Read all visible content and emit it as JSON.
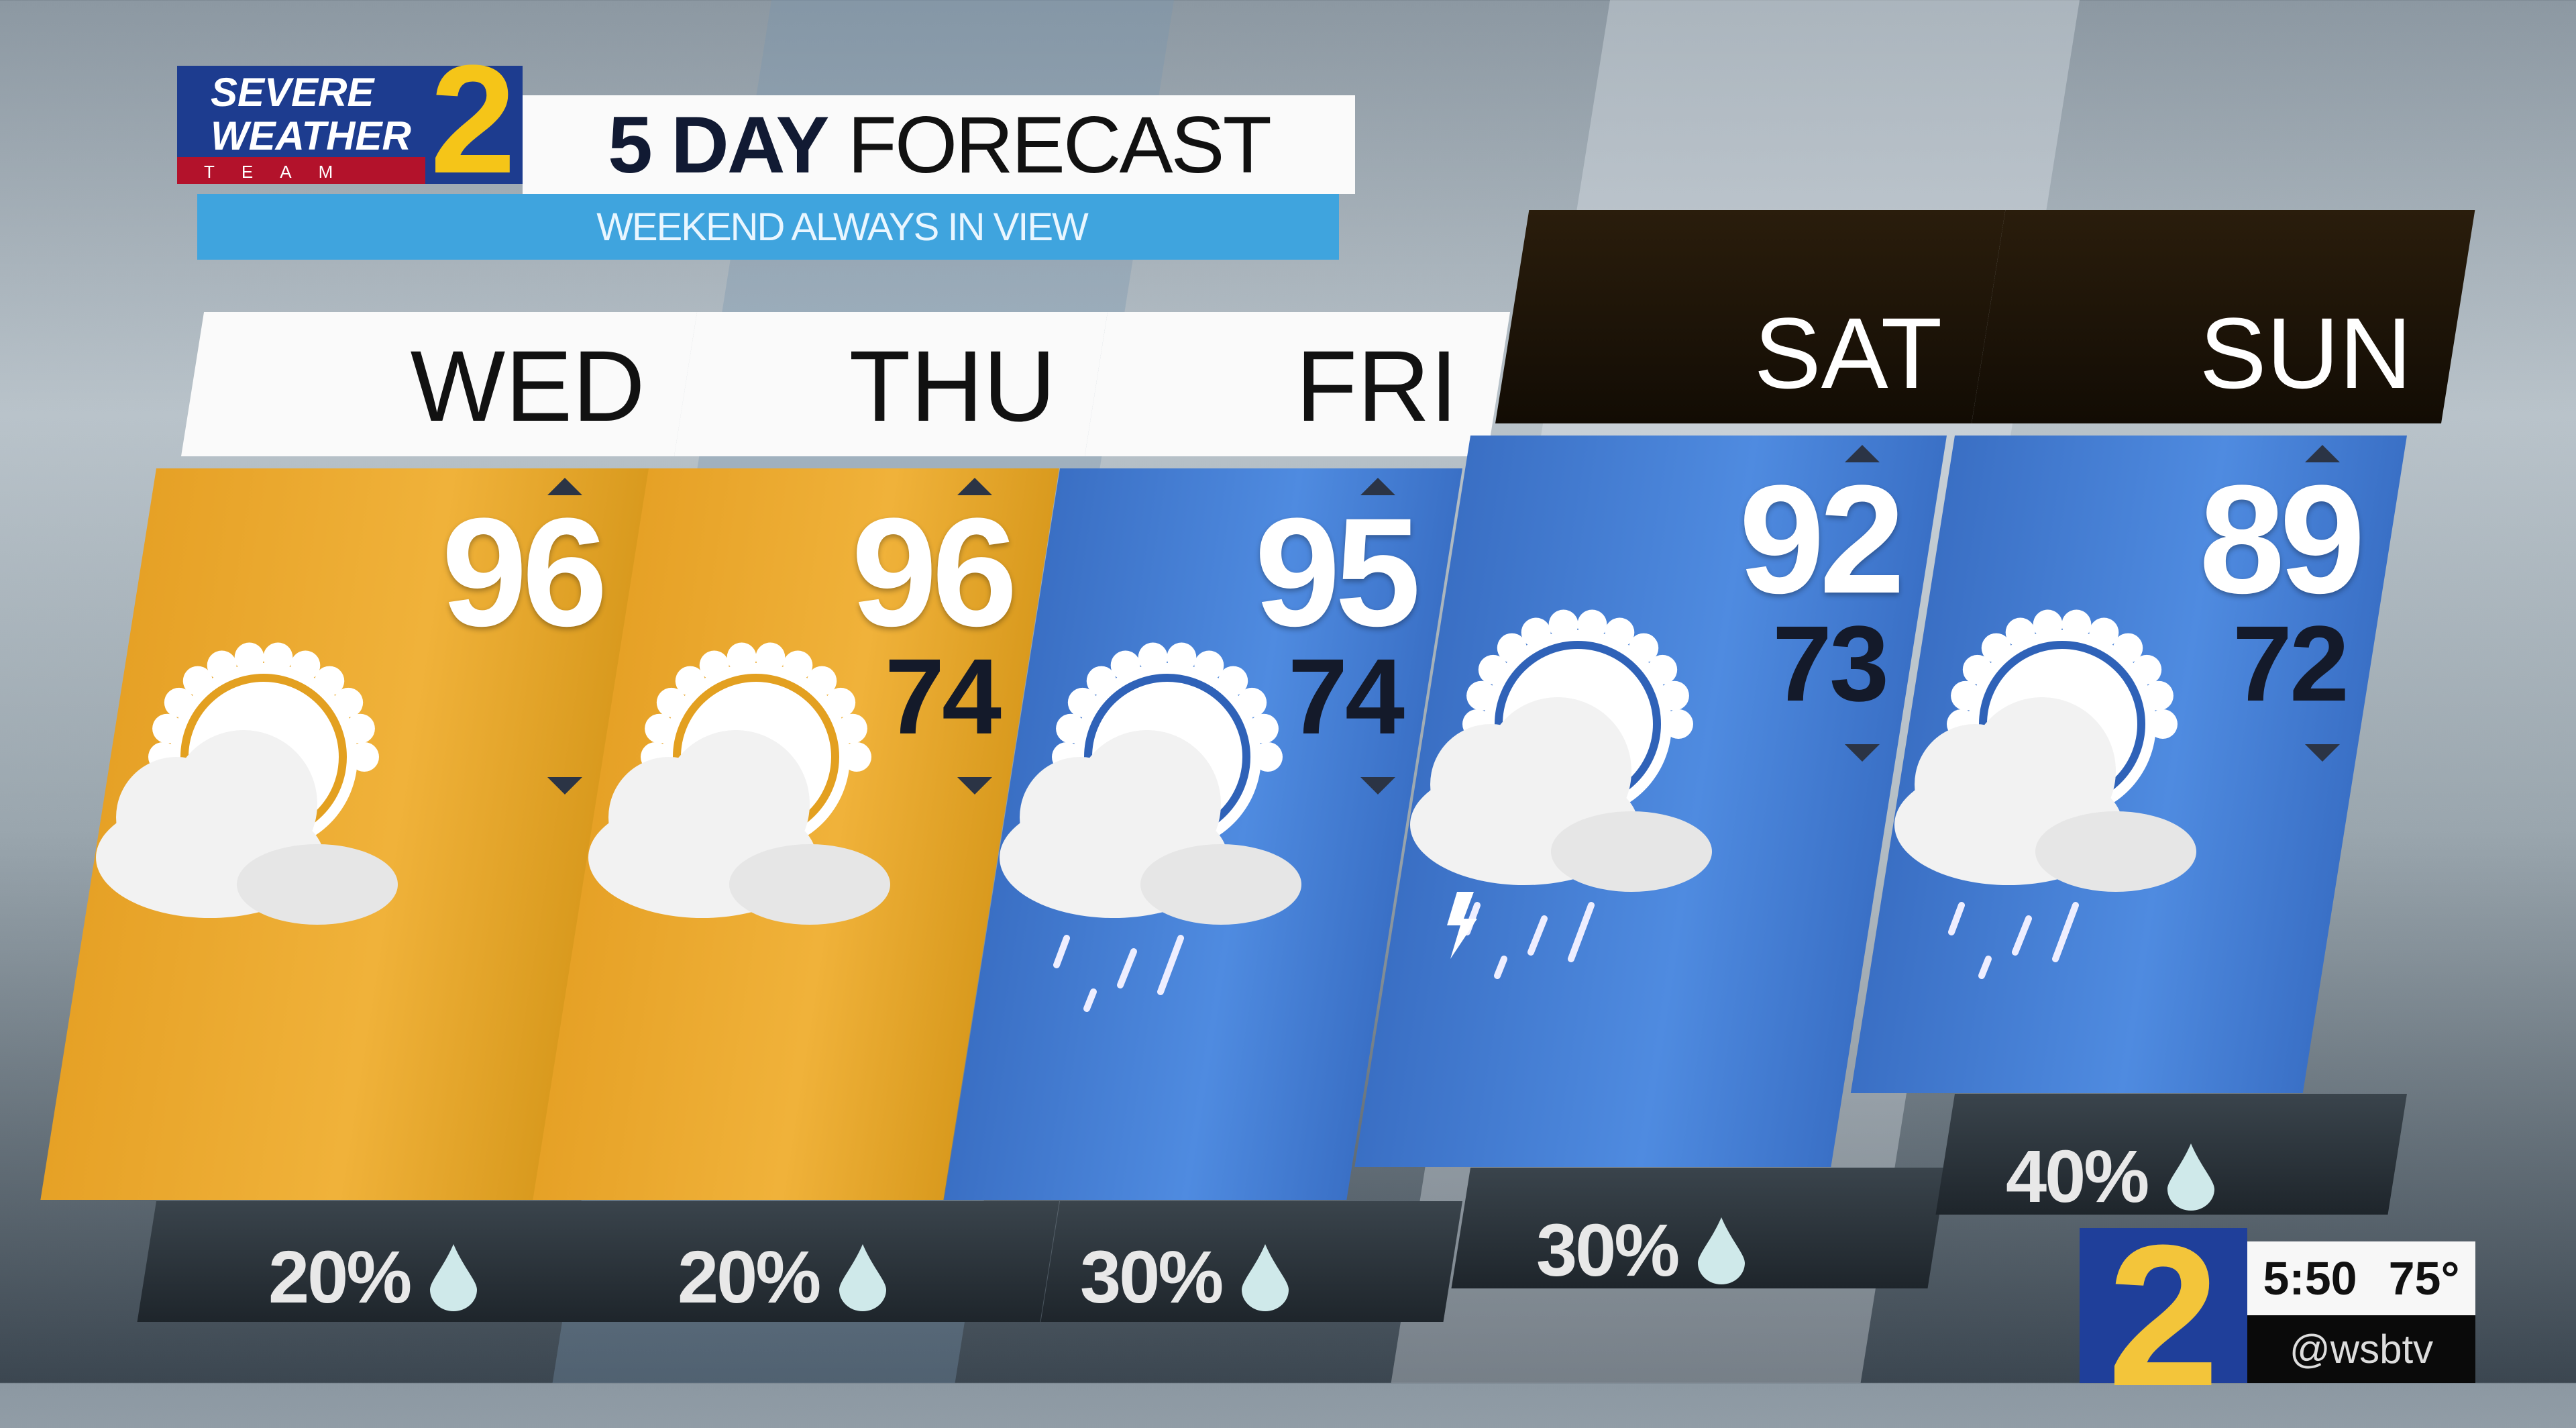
{
  "logo": {
    "line1": "SEVERE",
    "line2": "WEATHER",
    "line3": "TEAM",
    "number": "2"
  },
  "title": {
    "bold": "5 DAY",
    "regular": "FORECAST",
    "subtitle": "WEEKEND ALWAYS IN VIEW"
  },
  "days": [
    {
      "name": "WED",
      "high": "96",
      "low": "",
      "precip": "20%",
      "condition": "partly-sunny",
      "panel_color": "#eaa52b",
      "header_style": "light"
    },
    {
      "name": "THU",
      "high": "96",
      "low": "74",
      "precip": "20%",
      "condition": "partly-sunny",
      "panel_color": "#eaa52b",
      "header_style": "light"
    },
    {
      "name": "FRI",
      "high": "95",
      "low": "74",
      "precip": "30%",
      "condition": "partly-sunny-showers",
      "panel_color": "#4580d6",
      "header_style": "light"
    },
    {
      "name": "SAT",
      "high": "92",
      "low": "73",
      "precip": "30%",
      "condition": "partly-sunny-storms",
      "panel_color": "#4580d6",
      "header_style": "dark"
    },
    {
      "name": "SUN",
      "high": "89",
      "low": "72",
      "precip": "40%",
      "condition": "partly-sunny-showers",
      "panel_color": "#4580d6",
      "header_style": "dark"
    }
  ],
  "bug": {
    "channel": "2",
    "time": "5:50",
    "temp": "75°",
    "handle": "@wsbtv"
  }
}
